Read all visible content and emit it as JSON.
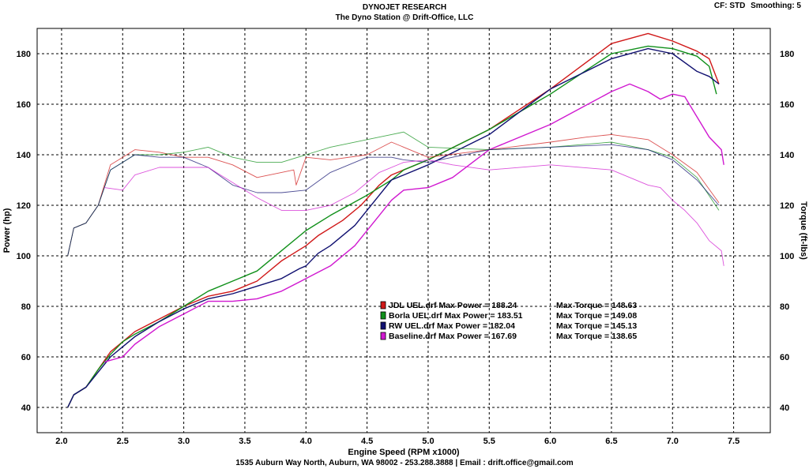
{
  "header": {
    "title": "DYNOJET RESEARCH",
    "subtitle": "The Dyno Station @ Drift-Office, LLC",
    "cf": "CF: STD",
    "smoothing": "Smoothing: 5"
  },
  "footer": "1535 Auburn Way North, Auburn, WA 98002 - 253.288.3888 | Email : drift.office@gmail.com",
  "colors": {
    "jdl": "#d01818",
    "borla": "#10901a",
    "rw": "#101070",
    "baseline": "#d018d0"
  },
  "chart_data": {
    "type": "line",
    "xlabel": "Engine Speed (RPM x1000)",
    "ylabel": "Power (hp)",
    "y2label": "Torque (ft-lbs)",
    "xlim": [
      1.8,
      7.8
    ],
    "ylim": [
      30,
      190
    ],
    "xticks": [
      2.0,
      2.5,
      3.0,
      3.5,
      4.0,
      4.5,
      5.0,
      5.5,
      6.0,
      6.5,
      7.0,
      7.5
    ],
    "yticks": [
      40,
      60,
      80,
      100,
      120,
      140,
      160,
      180
    ],
    "grid": true,
    "legend": [
      {
        "key": "jdl",
        "file": "JDL UEL.drf",
        "power": "Max Power = 188.24",
        "torque": "Max Torque = 148.63"
      },
      {
        "key": "borla",
        "file": "Borla UEL.drf",
        "power": "Max Power = 183.51",
        "torque": "Max Torque = 149.08"
      },
      {
        "key": "rw",
        "file": "RW UEL.drf",
        "power": "Max Power = 182.04",
        "torque": "Max Torque = 145.13"
      },
      {
        "key": "baseline",
        "file": "Baseline.drf",
        "power": "Max Power = 167.69",
        "torque": "Max Torque = 138.65"
      }
    ],
    "series": [
      {
        "key": "jdl",
        "kind": "power",
        "name": "JDL UEL Power",
        "x": [
          2.05,
          2.1,
          2.2,
          2.3,
          2.4,
          2.5,
          2.6,
          2.8,
          3.0,
          3.2,
          3.4,
          3.6,
          3.8,
          3.9,
          4.0,
          4.1,
          4.3,
          4.45,
          4.6,
          4.7,
          4.8,
          5.0,
          5.5,
          6.0,
          6.5,
          6.8,
          7.0,
          7.2,
          7.3,
          7.38
        ],
        "y": [
          40,
          45,
          48,
          55,
          62,
          66,
          70,
          75,
          80,
          84,
          86,
          90,
          98,
          101,
          104,
          108,
          114,
          120,
          128,
          132,
          134,
          138,
          150,
          166,
          184,
          188,
          185,
          181,
          178,
          168
        ]
      },
      {
        "key": "borla",
        "kind": "power",
        "name": "Borla UEL Power",
        "x": [
          2.05,
          2.1,
          2.2,
          2.3,
          2.4,
          2.5,
          2.6,
          2.8,
          3.0,
          3.2,
          3.4,
          3.6,
          3.8,
          4.0,
          4.2,
          4.5,
          4.7,
          4.8,
          5.0,
          5.5,
          6.0,
          6.5,
          6.8,
          7.0,
          7.2,
          7.3,
          7.36
        ],
        "y": [
          40,
          45,
          48,
          55,
          61,
          66,
          69,
          74,
          80,
          86,
          90,
          94,
          102,
          110,
          116,
          124,
          130,
          134,
          138,
          150,
          164,
          180,
          183,
          182,
          179,
          175,
          164
        ]
      },
      {
        "key": "rw",
        "kind": "power",
        "name": "RW UEL Power",
        "x": [
          2.05,
          2.1,
          2.2,
          2.3,
          2.4,
          2.5,
          2.6,
          2.8,
          3.0,
          3.2,
          3.4,
          3.6,
          3.8,
          3.95,
          4.0,
          4.1,
          4.2,
          4.4,
          4.6,
          4.7,
          4.8,
          5.0,
          5.5,
          6.0,
          6.5,
          6.8,
          7.0,
          7.2,
          7.3,
          7.38
        ],
        "y": [
          40,
          45,
          48,
          54,
          60,
          64,
          68,
          74,
          79,
          83,
          85,
          88,
          91,
          95,
          96,
          101,
          104,
          112,
          124,
          130,
          132,
          136,
          148,
          166,
          178,
          182,
          180,
          173,
          171,
          168
        ]
      },
      {
        "key": "baseline",
        "kind": "power",
        "name": "Baseline Power",
        "x": [
          2.35,
          2.5,
          2.6,
          2.8,
          3.0,
          3.2,
          3.4,
          3.6,
          3.8,
          4.0,
          4.2,
          4.4,
          4.6,
          4.7,
          4.8,
          5.0,
          5.2,
          5.5,
          6.0,
          6.5,
          6.65,
          6.8,
          6.9,
          7.0,
          7.1,
          7.2,
          7.3,
          7.4,
          7.42
        ],
        "y": [
          58,
          60,
          65,
          72,
          77,
          82,
          82,
          83,
          86,
          91,
          96,
          104,
          116,
          122,
          126,
          127,
          131,
          142,
          152,
          165,
          168,
          165,
          162,
          164,
          163,
          155,
          147,
          142,
          136
        ]
      },
      {
        "key": "jdl",
        "kind": "torque",
        "name": "JDL UEL Torque",
        "x": [
          2.05,
          2.1,
          2.2,
          2.3,
          2.4,
          2.5,
          2.6,
          2.8,
          3.0,
          3.2,
          3.4,
          3.6,
          3.8,
          3.9,
          3.92,
          4.0,
          4.2,
          4.5,
          4.7,
          4.8,
          5.0,
          5.5,
          6.0,
          6.3,
          6.5,
          6.8,
          7.0,
          7.2,
          7.38
        ],
        "y": [
          100,
          111,
          113,
          120,
          136,
          139,
          142,
          141,
          139,
          139,
          136,
          131,
          133,
          134,
          128,
          139,
          138,
          140,
          145,
          143,
          139,
          142,
          145,
          147,
          148,
          146,
          140,
          133,
          121
        ]
      },
      {
        "key": "borla",
        "kind": "torque",
        "name": "Borla UEL Torque",
        "x": [
          2.05,
          2.1,
          2.2,
          2.3,
          2.4,
          2.5,
          2.6,
          2.8,
          3.0,
          3.2,
          3.4,
          3.6,
          3.8,
          4.0,
          4.2,
          4.5,
          4.7,
          4.8,
          5.0,
          5.5,
          6.0,
          6.5,
          6.8,
          7.0,
          7.2,
          7.38
        ],
        "y": [
          100,
          111,
          113,
          120,
          134,
          137,
          140,
          140,
          141,
          143,
          139,
          137,
          137,
          140,
          143,
          146,
          148,
          149,
          143,
          142,
          143,
          145,
          142,
          139,
          131,
          118
        ]
      },
      {
        "key": "rw",
        "kind": "torque",
        "name": "RW UEL Torque",
        "x": [
          2.05,
          2.1,
          2.2,
          2.3,
          2.4,
          2.5,
          2.6,
          2.8,
          3.0,
          3.2,
          3.4,
          3.6,
          3.8,
          4.0,
          4.2,
          4.5,
          4.7,
          4.8,
          5.0,
          5.5,
          6.0,
          6.5,
          6.8,
          7.0,
          7.2,
          7.38
        ],
        "y": [
          100,
          111,
          113,
          120,
          134,
          137,
          140,
          139,
          139,
          135,
          128,
          125,
          125,
          126,
          133,
          139,
          139,
          138,
          137,
          142,
          143,
          144,
          142,
          138,
          130,
          120
        ]
      },
      {
        "key": "baseline",
        "kind": "torque",
        "name": "Baseline Torque",
        "x": [
          2.35,
          2.5,
          2.6,
          2.8,
          3.0,
          3.2,
          3.4,
          3.6,
          3.8,
          4.0,
          4.2,
          4.4,
          4.6,
          4.8,
          5.0,
          5.2,
          5.5,
          6.0,
          6.5,
          6.8,
          6.9,
          7.0,
          7.1,
          7.2,
          7.3,
          7.4,
          7.42
        ],
        "y": [
          127,
          126,
          132,
          135,
          135,
          135,
          129,
          123,
          118,
          118,
          120,
          125,
          133,
          137,
          138,
          136,
          134,
          136,
          134,
          128,
          127,
          122,
          118,
          113,
          106,
          102,
          96
        ]
      }
    ]
  }
}
